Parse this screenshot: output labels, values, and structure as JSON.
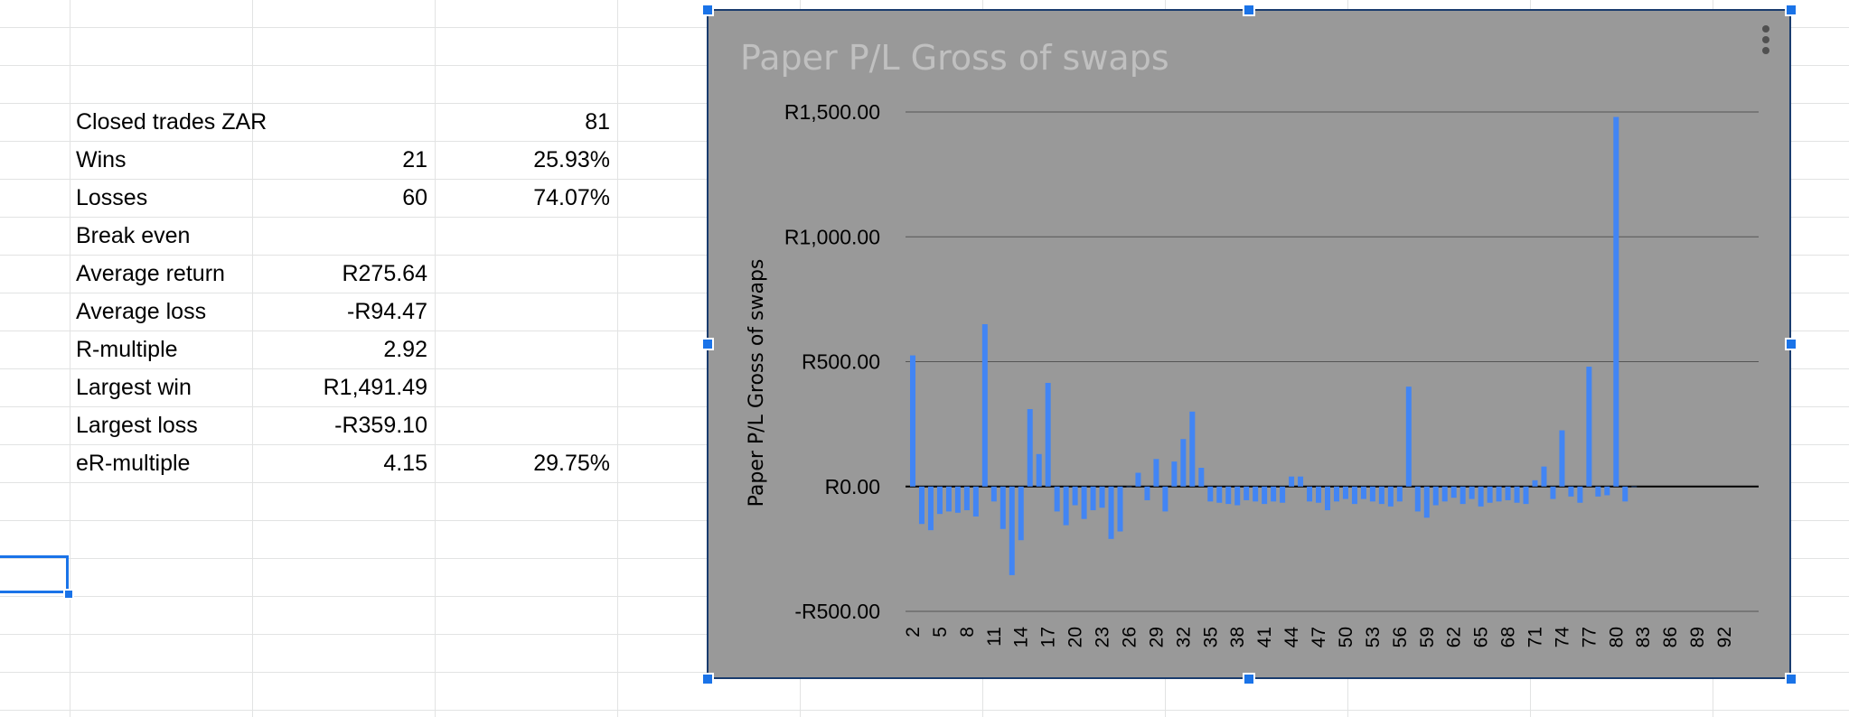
{
  "stats": [
    {
      "label": "Closed trades ZAR",
      "value": "",
      "pct": "81"
    },
    {
      "label": "Wins",
      "value": "21",
      "pct": "25.93%"
    },
    {
      "label": "Losses",
      "value": "60",
      "pct": "74.07%"
    },
    {
      "label": "Break even",
      "value": "",
      "pct": ""
    },
    {
      "label": "Average return",
      "value": "R275.64",
      "pct": ""
    },
    {
      "label": "Average loss",
      "value": "-R94.47",
      "pct": ""
    },
    {
      "label": "R-multiple",
      "value": "2.92",
      "pct": ""
    },
    {
      "label": "Largest win",
      "value": "R1,491.49",
      "pct": ""
    },
    {
      "label": "Largest loss",
      "value": "-R359.10",
      "pct": ""
    },
    {
      "label": "eR-multiple",
      "value": "4.15",
      "pct": "29.75%"
    }
  ],
  "colors": {
    "chart_background": "#999999",
    "bar": "#4285f4",
    "title": "#c0c0c0",
    "selection": "#1a73e8"
  },
  "chart_data": {
    "type": "bar",
    "title": "Paper P/L Gross of swaps",
    "ylabel": "Paper P/L Gross of swaps",
    "xlabel": "",
    "ylim": [
      -500,
      1500
    ],
    "yticks": [
      {
        "value": -500,
        "label": "-R500.00"
      },
      {
        "value": 0,
        "label": "R0.00"
      },
      {
        "value": 500,
        "label": "R500.00"
      },
      {
        "value": 1000,
        "label": "R1,000.00"
      },
      {
        "value": 1500,
        "label": "R1,500.00"
      }
    ],
    "xrange": [
      2,
      94
    ],
    "xtick_labels": [
      "2",
      "5",
      "8",
      "11",
      "14",
      "17",
      "20",
      "23",
      "26",
      "29",
      "32",
      "35",
      "38",
      "41",
      "44",
      "47",
      "50",
      "53",
      "56",
      "59",
      "62",
      "65",
      "68",
      "71",
      "74",
      "77",
      "80",
      "83",
      "86",
      "89",
      "92"
    ],
    "grid": true,
    "legend": "none",
    "x": [
      2,
      3,
      4,
      5,
      6,
      7,
      8,
      9,
      10,
      11,
      12,
      13,
      14,
      15,
      16,
      17,
      18,
      19,
      20,
      21,
      22,
      23,
      24,
      25,
      26,
      27,
      28,
      29,
      30,
      31,
      32,
      33,
      34,
      35,
      36,
      37,
      38,
      39,
      40,
      41,
      42,
      43,
      44,
      45,
      46,
      47,
      48,
      49,
      50,
      51,
      52,
      53,
      54,
      55,
      56,
      57,
      58,
      59,
      60,
      61,
      62,
      63,
      64,
      65,
      66,
      67,
      68,
      69,
      70,
      71,
      72,
      73,
      74,
      75,
      76,
      77,
      78,
      79,
      80,
      81,
      82
    ],
    "values": [
      525,
      -150,
      -175,
      -110,
      -100,
      -105,
      -95,
      -120,
      650,
      -60,
      -170,
      -355,
      -215,
      310,
      130,
      415,
      -100,
      -155,
      -75,
      -130,
      -95,
      -85,
      -210,
      -180,
      0,
      55,
      -55,
      110,
      -100,
      100,
      190,
      300,
      75,
      -60,
      -65,
      -70,
      -75,
      -55,
      -60,
      -70,
      -60,
      -65,
      40,
      40,
      -60,
      -65,
      -95,
      -60,
      -50,
      -70,
      -50,
      -60,
      -70,
      -80,
      -60,
      400,
      -100,
      -125,
      -75,
      -60,
      -45,
      -70,
      -50,
      -80,
      -65,
      -60,
      -55,
      -65,
      -70,
      25,
      80,
      -50,
      225,
      -40,
      -65,
      480,
      -40,
      -35,
      1480,
      -60,
      0
    ]
  }
}
